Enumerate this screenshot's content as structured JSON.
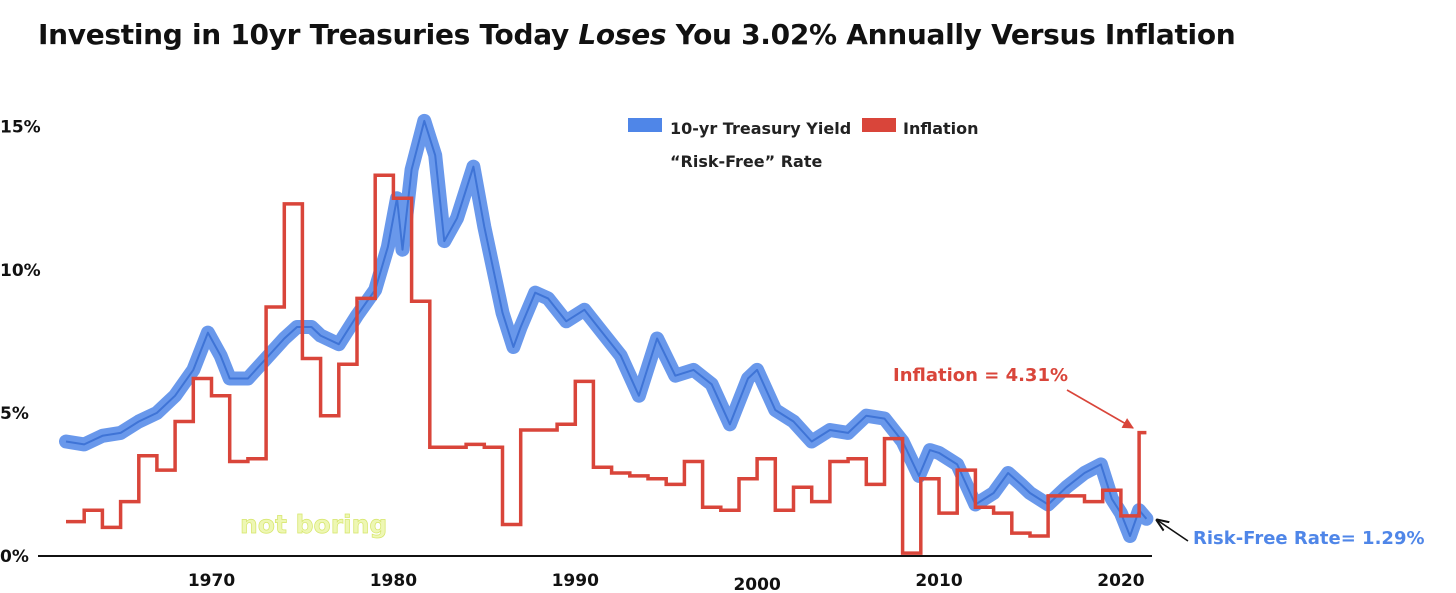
{
  "title": {
    "before": "Investing in 10yr Treasuries Today ",
    "emphasis": "Loses",
    "after": " You 3.02% Annually Versus Inflation"
  },
  "colors": {
    "treasury": "#4f86e8",
    "inflation": "#d9453a",
    "axis": "#111111"
  },
  "legend": {
    "treasury_label": "10-yr Treasury Yield",
    "treasury_sublabel": "“Risk-Free” Rate",
    "inflation_label": "Inflation"
  },
  "annotations": {
    "inflation": "Inflation = 4.31%",
    "risk_free": "Risk-Free Rate= 1.29%",
    "watermark": "not boring"
  },
  "chart_data": {
    "type": "line",
    "xlim": [
      1962,
      2021.6
    ],
    "ylim": [
      0,
      16
    ],
    "x_ticks": [
      1970,
      1980,
      1990,
      2000,
      2010,
      2020
    ],
    "x_tick_labels": [
      "1970",
      "1980",
      "1990",
      "2000",
      "2010",
      "2020"
    ],
    "y_ticks": [
      0,
      5,
      10,
      15
    ],
    "y_tick_labels": [
      "0%",
      "5%",
      "10%",
      "15%"
    ],
    "series": [
      {
        "name": "10-yr Treasury Yield",
        "style": "line",
        "points": [
          [
            1962.0,
            4.0
          ],
          [
            1963.0,
            3.9
          ],
          [
            1964.0,
            4.2
          ],
          [
            1965.0,
            4.3
          ],
          [
            1966.0,
            4.7
          ],
          [
            1967.0,
            5.0
          ],
          [
            1968.0,
            5.6
          ],
          [
            1969.0,
            6.5
          ],
          [
            1969.8,
            7.8
          ],
          [
            1970.5,
            7.0
          ],
          [
            1971.0,
            6.2
          ],
          [
            1972.0,
            6.2
          ],
          [
            1973.0,
            6.9
          ],
          [
            1974.0,
            7.6
          ],
          [
            1974.7,
            8.0
          ],
          [
            1975.5,
            8.0
          ],
          [
            1976.0,
            7.7
          ],
          [
            1977.0,
            7.4
          ],
          [
            1978.0,
            8.4
          ],
          [
            1979.0,
            9.3
          ],
          [
            1979.7,
            10.8
          ],
          [
            1980.2,
            12.5
          ],
          [
            1980.5,
            10.7
          ],
          [
            1981.0,
            13.5
          ],
          [
            1981.7,
            15.2
          ],
          [
            1982.3,
            14.0
          ],
          [
            1982.8,
            11.0
          ],
          [
            1983.5,
            11.8
          ],
          [
            1984.4,
            13.6
          ],
          [
            1985.0,
            11.5
          ],
          [
            1986.0,
            8.5
          ],
          [
            1986.6,
            7.3
          ],
          [
            1987.0,
            8.0
          ],
          [
            1987.8,
            9.2
          ],
          [
            1988.5,
            9.0
          ],
          [
            1989.5,
            8.2
          ],
          [
            1990.5,
            8.6
          ],
          [
            1991.5,
            7.8
          ],
          [
            1992.5,
            7.0
          ],
          [
            1993.5,
            5.6
          ],
          [
            1994.5,
            7.6
          ],
          [
            1995.5,
            6.3
          ],
          [
            1996.5,
            6.5
          ],
          [
            1997.5,
            6.0
          ],
          [
            1998.5,
            4.6
          ],
          [
            1999.5,
            6.2
          ],
          [
            2000.0,
            6.5
          ],
          [
            2001.0,
            5.1
          ],
          [
            2002.0,
            4.7
          ],
          [
            2003.0,
            4.0
          ],
          [
            2004.0,
            4.4
          ],
          [
            2005.0,
            4.3
          ],
          [
            2006.0,
            4.9
          ],
          [
            2007.0,
            4.8
          ],
          [
            2008.0,
            4.0
          ],
          [
            2008.9,
            2.8
          ],
          [
            2009.5,
            3.7
          ],
          [
            2010.0,
            3.6
          ],
          [
            2011.0,
            3.2
          ],
          [
            2012.0,
            1.8
          ],
          [
            2013.0,
            2.2
          ],
          [
            2013.8,
            2.9
          ],
          [
            2014.5,
            2.5
          ],
          [
            2015.0,
            2.2
          ],
          [
            2016.0,
            1.8
          ],
          [
            2017.0,
            2.4
          ],
          [
            2018.0,
            2.9
          ],
          [
            2018.9,
            3.2
          ],
          [
            2019.5,
            2.0
          ],
          [
            2020.0,
            1.5
          ],
          [
            2020.5,
            0.7
          ],
          [
            2021.0,
            1.6
          ],
          [
            2021.4,
            1.3
          ]
        ]
      },
      {
        "name": "Inflation",
        "style": "step",
        "points": [
          [
            1962.0,
            1.2
          ],
          [
            1963.0,
            1.6
          ],
          [
            1964.0,
            1.0
          ],
          [
            1965.0,
            1.9
          ],
          [
            1966.0,
            3.5
          ],
          [
            1967.0,
            3.0
          ],
          [
            1968.0,
            4.7
          ],
          [
            1969.0,
            6.2
          ],
          [
            1970.0,
            5.6
          ],
          [
            1971.0,
            3.3
          ],
          [
            1972.0,
            3.4
          ],
          [
            1973.0,
            8.7
          ],
          [
            1974.0,
            12.3
          ],
          [
            1975.0,
            6.9
          ],
          [
            1976.0,
            4.9
          ],
          [
            1977.0,
            6.7
          ],
          [
            1978.0,
            9.0
          ],
          [
            1979.0,
            13.3
          ],
          [
            1980.0,
            12.5
          ],
          [
            1981.0,
            8.9
          ],
          [
            1982.0,
            3.8
          ],
          [
            1983.0,
            3.8
          ],
          [
            1984.0,
            3.9
          ],
          [
            1985.0,
            3.8
          ],
          [
            1986.0,
            1.1
          ],
          [
            1987.0,
            4.4
          ],
          [
            1988.0,
            4.4
          ],
          [
            1989.0,
            4.6
          ],
          [
            1990.0,
            6.1
          ],
          [
            1991.0,
            3.1
          ],
          [
            1992.0,
            2.9
          ],
          [
            1993.0,
            2.8
          ],
          [
            1994.0,
            2.7
          ],
          [
            1995.0,
            2.5
          ],
          [
            1996.0,
            3.3
          ],
          [
            1997.0,
            1.7
          ],
          [
            1998.0,
            1.6
          ],
          [
            1999.0,
            2.7
          ],
          [
            2000.0,
            3.4
          ],
          [
            2001.0,
            1.6
          ],
          [
            2002.0,
            2.4
          ],
          [
            2003.0,
            1.9
          ],
          [
            2004.0,
            3.3
          ],
          [
            2005.0,
            3.4
          ],
          [
            2006.0,
            2.5
          ],
          [
            2007.0,
            4.1
          ],
          [
            2008.0,
            0.1
          ],
          [
            2009.0,
            2.7
          ],
          [
            2010.0,
            1.5
          ],
          [
            2011.0,
            3.0
          ],
          [
            2012.0,
            1.7
          ],
          [
            2013.0,
            1.5
          ],
          [
            2014.0,
            0.8
          ],
          [
            2015.0,
            0.7
          ],
          [
            2016.0,
            2.1
          ],
          [
            2017.0,
            2.1
          ],
          [
            2018.0,
            1.9
          ],
          [
            2019.0,
            2.3
          ],
          [
            2020.0,
            1.4
          ],
          [
            2021.0,
            4.31
          ],
          [
            2021.4,
            4.31
          ]
        ]
      }
    ],
    "grid": false,
    "legend_position": "top-center"
  }
}
